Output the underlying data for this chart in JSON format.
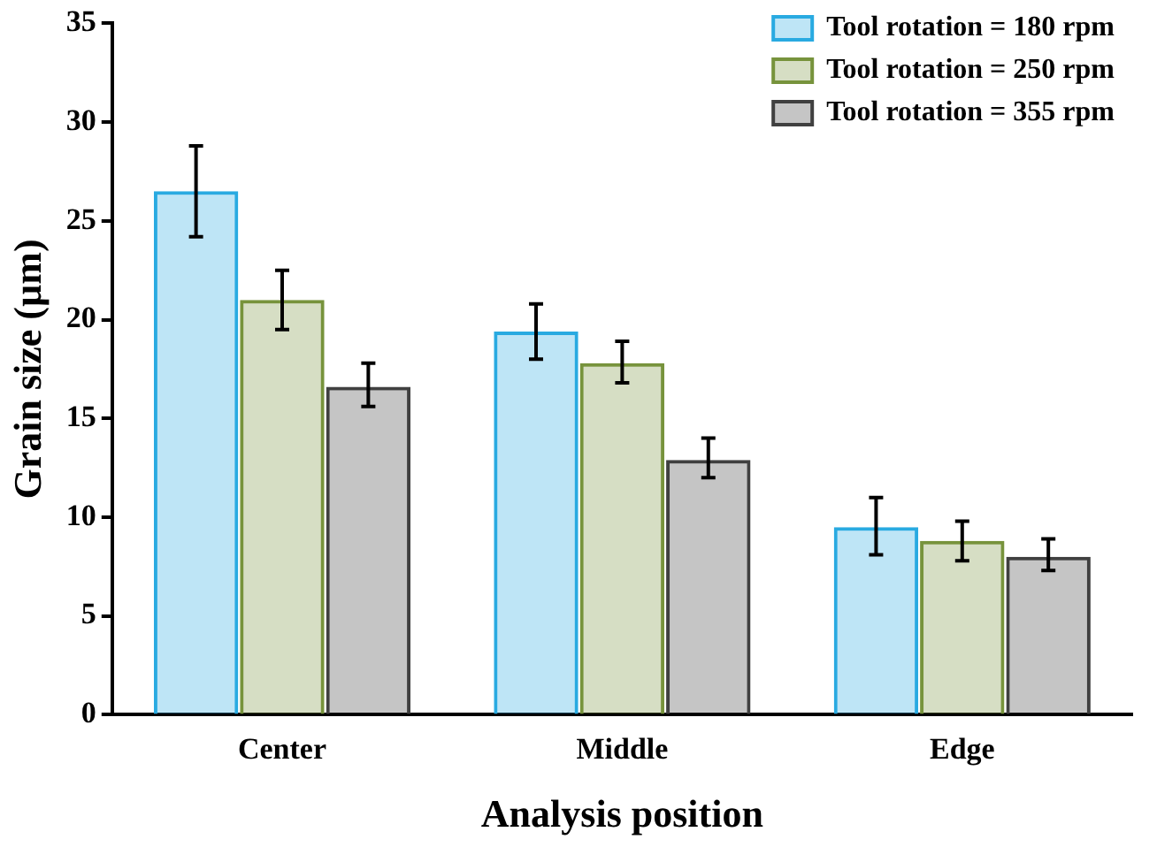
{
  "chart_data": {
    "type": "bar",
    "xlabel": "Analysis position",
    "ylabel": "Grain size (µm)",
    "categories": [
      "Center",
      "Middle",
      "Edge"
    ],
    "series": [
      {
        "name": "Tool rotation = 180 rpm",
        "color": "#29aae1",
        "values": [
          26.5,
          19.4,
          9.5
        ],
        "errors": [
          [
            24.2,
            28.8
          ],
          [
            18.0,
            20.8
          ],
          [
            8.1,
            11.0
          ]
        ]
      },
      {
        "name": "Tool rotation = 250 rpm",
        "color": "#77933c",
        "values": [
          21.0,
          17.8,
          8.8
        ],
        "errors": [
          [
            19.5,
            22.5
          ],
          [
            16.8,
            18.9
          ],
          [
            7.8,
            9.8
          ]
        ]
      },
      {
        "name": "Tool rotation = 355 rpm",
        "color": "#404040",
        "values": [
          16.6,
          12.9,
          8.0
        ],
        "errors": [
          [
            15.6,
            17.8
          ],
          [
            12.0,
            14.0
          ],
          [
            7.3,
            8.9
          ]
        ]
      }
    ],
    "ylim": [
      0,
      35
    ],
    "yticks": [
      0,
      5,
      10,
      15,
      20,
      25,
      30,
      35
    ],
    "grid": false,
    "legend": "top right"
  }
}
